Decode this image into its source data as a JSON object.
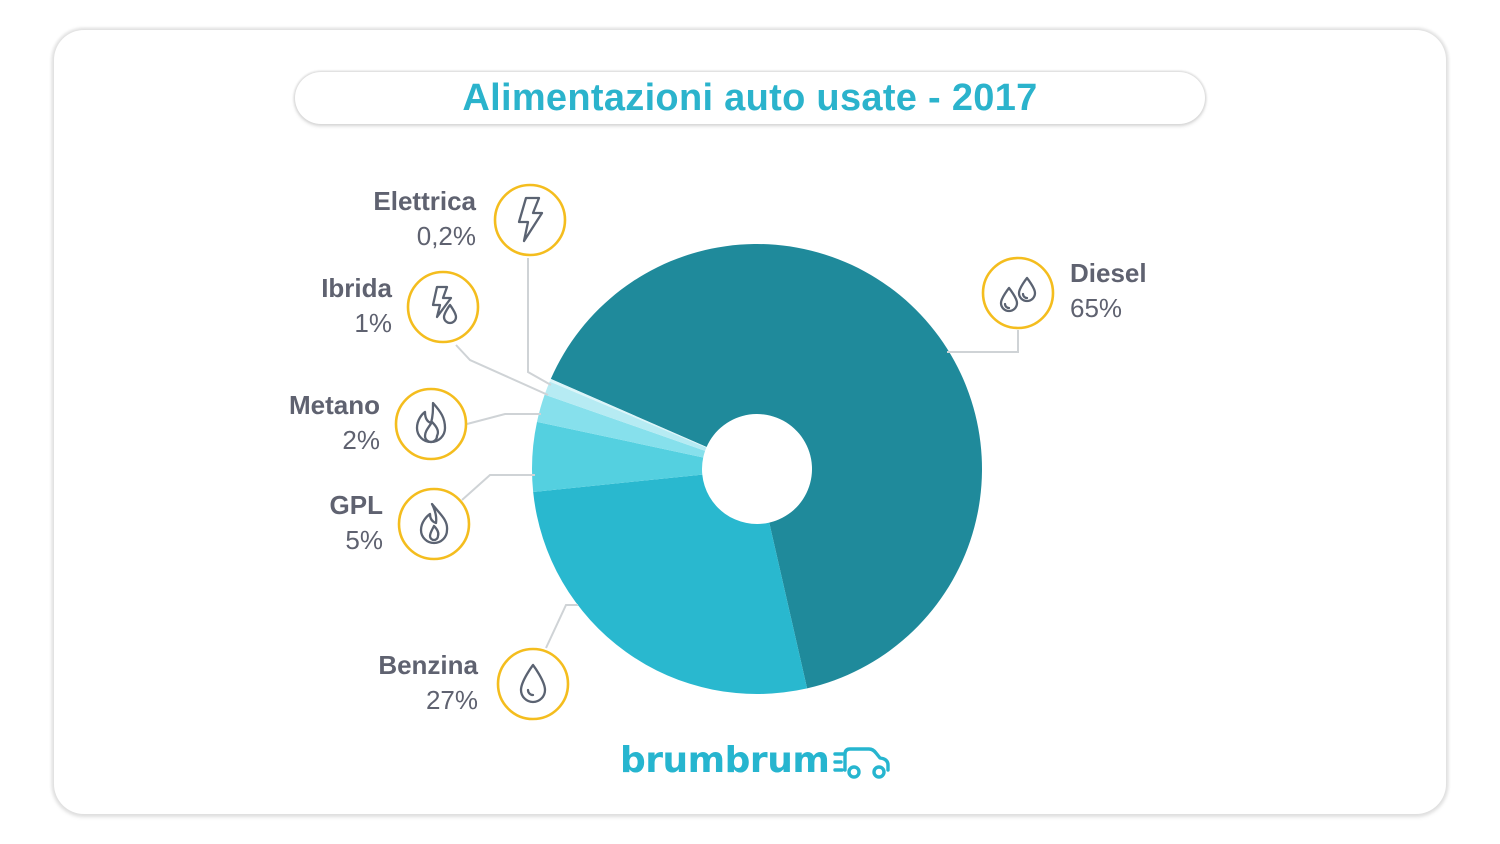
{
  "title": "Alimentazioni auto usate - 2017",
  "logo_text": "brumbrum",
  "colors": {
    "title": "#2bb3cc",
    "label_dark": "#5f6270",
    "icon_ring": "#f4bd1e",
    "icon_stroke": "#5b6372",
    "leader": "#cfd3d6",
    "logo": "#26b5cf"
  },
  "chart_data": {
    "type": "pie",
    "title": "Alimentazioni auto usate - 2017",
    "donut": true,
    "slices": [
      {
        "label": "Diesel",
        "value_text": "65%",
        "value": 65,
        "color": "#1f8a9b",
        "icon": "double-drop-icon"
      },
      {
        "label": "Benzina",
        "value_text": "27%",
        "value": 27,
        "color": "#29b8cf",
        "icon": "drop-icon"
      },
      {
        "label": "GPL",
        "value_text": "5%",
        "value": 5,
        "color": "#54d0e0",
        "icon": "flame-icon"
      },
      {
        "label": "Metano",
        "value_text": "2%",
        "value": 2,
        "color": "#86e0ec",
        "icon": "fire-icon"
      },
      {
        "label": "Ibrida",
        "value_text": "1%",
        "value": 1,
        "color": "#b6ebf3",
        "icon": "bolt-drop-icon"
      },
      {
        "label": "Elettrica",
        "value_text": "0,2%",
        "value": 0.2,
        "color": "#dcf5f9",
        "icon": "bolt-icon"
      }
    ]
  }
}
